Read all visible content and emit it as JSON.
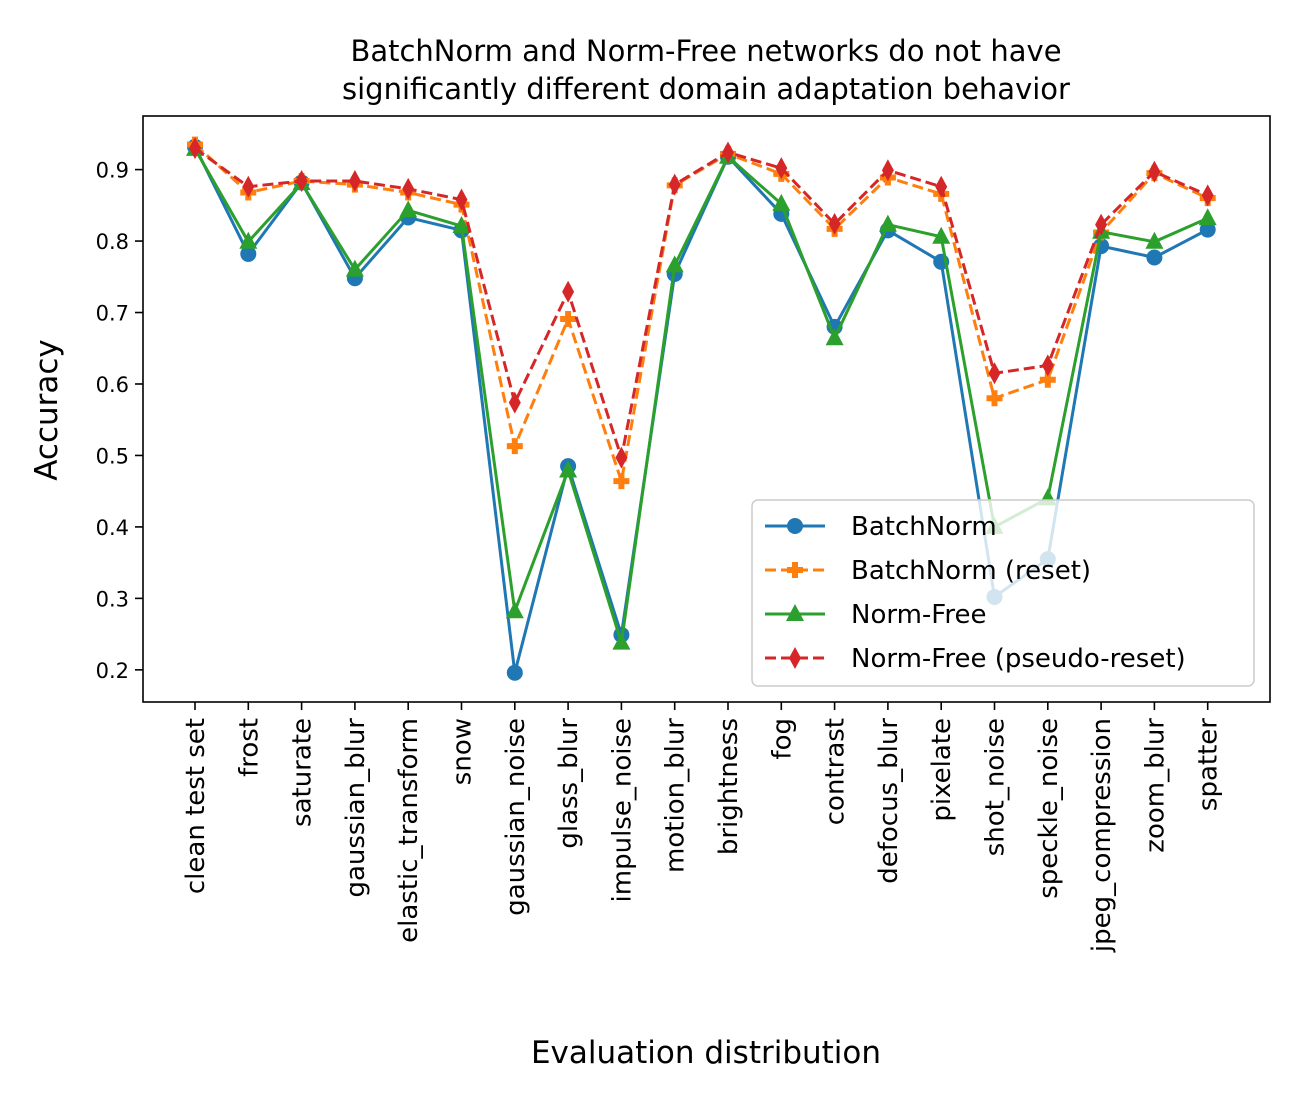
{
  "chart_data": {
    "type": "line",
    "title_lines": [
      "BatchNorm and Norm-Free networks do not have",
      "significantly different domain adaptation behavior"
    ],
    "xlabel": "Evaluation distribution",
    "ylabel": "Accuracy",
    "ylim": [
      0.155,
      0.975
    ],
    "yticks": [
      0.2,
      0.3,
      0.4,
      0.5,
      0.6,
      0.7,
      0.8,
      0.9
    ],
    "ytick_labels": [
      "0.2",
      "0.3",
      "0.4",
      "0.5",
      "0.6",
      "0.7",
      "0.8",
      "0.9"
    ],
    "grid": false,
    "legend_position": "lower-right",
    "categories": [
      "clean test set",
      "frost",
      "saturate",
      "gaussian_blur",
      "elastic_transform",
      "snow",
      "gaussian_noise",
      "glass_blur",
      "impulse_noise",
      "motion_blur",
      "brightness",
      "fog",
      "contrast",
      "defocus_blur",
      "pixelate",
      "shot_noise",
      "speckle_noise",
      "jpeg_compression",
      "zoom_blur",
      "spatter"
    ],
    "series": [
      {
        "name": "BatchNorm",
        "color": "#1f77b4",
        "dash": "solid",
        "marker": "circle",
        "values": [
          0.932,
          0.782,
          0.882,
          0.748,
          0.833,
          0.815,
          0.196,
          0.485,
          0.249,
          0.754,
          0.918,
          0.838,
          0.68,
          0.815,
          0.771,
          0.302,
          0.355,
          0.793,
          0.777,
          0.816
        ]
      },
      {
        "name": "BatchNorm (reset)",
        "color": "#ff7f0e",
        "dash": "dashed",
        "marker": "plus",
        "values": [
          0.935,
          0.868,
          0.884,
          0.879,
          0.868,
          0.851,
          0.513,
          0.691,
          0.464,
          0.878,
          0.922,
          0.894,
          0.817,
          0.889,
          0.866,
          0.58,
          0.606,
          0.812,
          0.895,
          0.86
        ]
      },
      {
        "name": "Norm-Free",
        "color": "#2ca02c",
        "dash": "solid",
        "marker": "triangle",
        "values": [
          0.929,
          0.799,
          0.881,
          0.76,
          0.843,
          0.821,
          0.282,
          0.479,
          0.238,
          0.766,
          0.918,
          0.852,
          0.664,
          0.823,
          0.806,
          0.4,
          0.44,
          0.813,
          0.799,
          0.832
        ]
      },
      {
        "name": "Norm-Free (pseudo-reset)",
        "color": "#d62728",
        "dash": "dashed",
        "marker": "diamond",
        "values": [
          0.93,
          0.876,
          0.884,
          0.884,
          0.873,
          0.858,
          0.574,
          0.729,
          0.497,
          0.879,
          0.924,
          0.902,
          0.824,
          0.899,
          0.876,
          0.615,
          0.626,
          0.823,
          0.897,
          0.864
        ]
      }
    ]
  }
}
